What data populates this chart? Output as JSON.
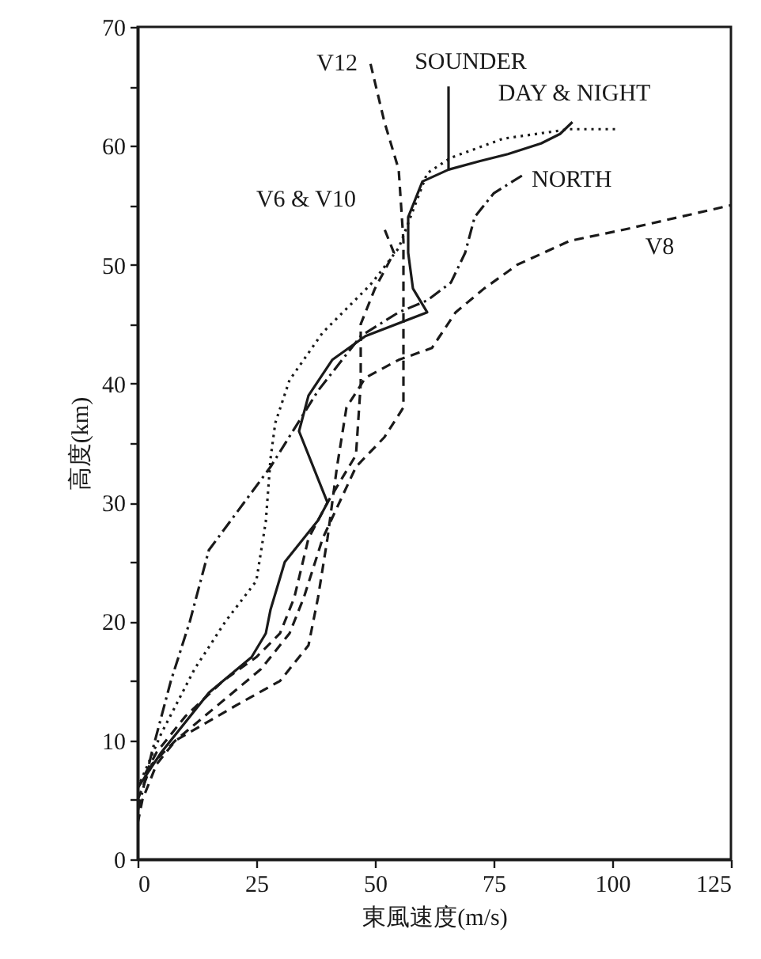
{
  "chart_data": {
    "type": "line",
    "xlabel": "東風速度(m/s)",
    "ylabel": "高度(km)",
    "xlim": [
      0,
      125
    ],
    "xticks": [
      0,
      25,
      50,
      75,
      100,
      125
    ],
    "ylim": [
      0,
      70
    ],
    "yticks": [
      0,
      {
        "value": 5,
        "label": null
      },
      10,
      {
        "value": 15,
        "label": null
      },
      20,
      {
        "value": 25,
        "label": null
      },
      30,
      {
        "value": 35,
        "label": null
      },
      40,
      {
        "value": 45,
        "label": null
      },
      50,
      {
        "value": 55,
        "label": null
      },
      60,
      {
        "value": 65,
        "label": null
      },
      70
    ],
    "series": [
      {
        "name": "V12",
        "color": "#1a1a1a",
        "line_style": "dashed",
        "x": [
          0,
          3,
          8,
          17,
          26,
          32,
          35,
          39,
          46,
          52,
          56,
          56,
          56,
          55,
          52,
          49
        ],
        "values": [
          5,
          8,
          10,
          13,
          16,
          19,
          22,
          27,
          33,
          35.5,
          38,
          45,
          52,
          58,
          62,
          67
        ]
      },
      {
        "name": "SOUNDER",
        "color": "#1a1a1a",
        "line_style": "solid",
        "x": [
          0,
          5,
          15,
          24,
          27,
          28,
          31,
          38,
          40,
          38,
          34,
          36,
          41,
          48,
          61,
          58,
          57,
          57,
          60,
          65.5,
          65.5,
          65.5
        ],
        "values": [
          6,
          9,
          14,
          17,
          19,
          21,
          25,
          28.5,
          30,
          32,
          36,
          39,
          42,
          44,
          46,
          48,
          51,
          54,
          57,
          58,
          61,
          65
        ]
      },
      {
        "color": "#1a1a1a",
        "line_style": "solid",
        "x": [
          65.5,
          72,
          78,
          85,
          89,
          91.6
        ],
        "values": [
          58,
          58.7,
          59.3,
          60.2,
          61,
          62
        ]
      },
      {
        "name": "DAY & NIGHT",
        "color": "#1a1a1a",
        "line_style": "dotted",
        "x": [
          0,
          5,
          12,
          18.5,
          25,
          27,
          28,
          29,
          32,
          39,
          49,
          51,
          55,
          61,
          66,
          77,
          91,
          101
        ],
        "values": [
          6,
          10.6,
          16,
          20,
          23.4,
          28.4,
          33.7,
          36.7,
          40.3,
          44.3,
          48.3,
          49.3,
          51.4,
          57.7,
          59,
          60.6,
          61.4,
          61.4
        ]
      },
      {
        "name": "V6 & V10",
        "color": "#1a1a1a",
        "line_style": "dashed",
        "x": [
          0,
          4,
          10,
          18,
          25,
          30,
          33,
          36,
          40,
          46,
          47,
          47,
          50,
          54,
          52
        ],
        "values": [
          6,
          9,
          12,
          15,
          17,
          19,
          22,
          27,
          30,
          34,
          40,
          45,
          48,
          51,
          53
        ]
      },
      {
        "name": "NORTH",
        "color": "#1a1a1a",
        "line_style": "dashdot",
        "x": [
          0,
          3,
          7,
          11,
          15,
          28,
          38,
          47,
          55,
          61,
          66,
          69,
          71,
          75,
          81
        ],
        "values": [
          4,
          9,
          15,
          20,
          26,
          33,
          39.4,
          44,
          46,
          47,
          48.5,
          51,
          54,
          56,
          57.5
        ]
      },
      {
        "name": "V8",
        "color": "#1a1a1a",
        "line_style": "dashed",
        "x": [
          0,
          1,
          4,
          8,
          21,
          30,
          36,
          38,
          40,
          42,
          44,
          48,
          55,
          62,
          67,
          73,
          80,
          91,
          103,
          125
        ],
        "values": [
          3,
          5,
          8,
          10,
          13,
          15,
          18,
          22,
          27,
          33,
          38,
          40.5,
          42,
          43,
          46,
          48,
          50,
          52,
          53,
          55
        ]
      }
    ]
  }
}
